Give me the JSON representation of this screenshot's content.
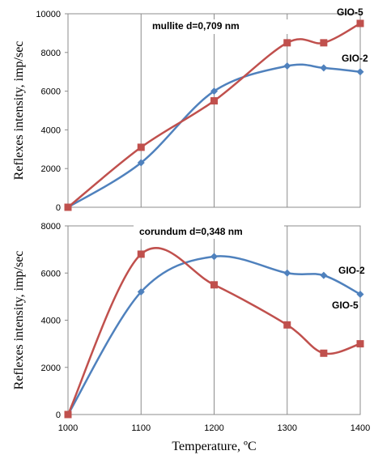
{
  "chart_data": [
    {
      "type": "line",
      "annotation": "mullite d=0,709 nm",
      "ylabel": "Reflexes intensity,  imp/sec",
      "xlim": [
        1000,
        1400
      ],
      "ylim": [
        0,
        10000
      ],
      "yticks": [
        "0",
        "2000",
        "4000",
        "6000",
        "8000",
        "10000"
      ],
      "grid": "vertical",
      "series": [
        {
          "name": "GIO-2",
          "color": "#4f81bd",
          "marker": "diamond",
          "x": [
            1000,
            1100,
            1200,
            1300,
            1350,
            1400
          ],
          "y": [
            0,
            2300,
            6000,
            7300,
            7200,
            7000
          ]
        },
        {
          "name": "GIO-5",
          "color": "#c0504d",
          "marker": "square",
          "x": [
            1000,
            1100,
            1200,
            1300,
            1350,
            1400
          ],
          "y": [
            0,
            3100,
            5500,
            8500,
            8500,
            9500
          ]
        }
      ]
    },
    {
      "type": "line",
      "annotation": "corundum d=0,348 nm",
      "ylabel": "Reflexes intensity,  imp/sec",
      "xlabel": "Temperature, ºC",
      "xlim": [
        1000,
        1400
      ],
      "ylim": [
        0,
        8000
      ],
      "xticks": [
        "1000",
        "1100",
        "1200",
        "1300",
        "1400"
      ],
      "yticks": [
        "0",
        "2000",
        "4000",
        "6000",
        "8000"
      ],
      "grid": "vertical",
      "series": [
        {
          "name": "GIO-2",
          "color": "#4f81bd",
          "marker": "diamond",
          "x": [
            1000,
            1100,
            1200,
            1300,
            1350,
            1400
          ],
          "y": [
            0,
            5200,
            6700,
            6000,
            5900,
            5100
          ]
        },
        {
          "name": "GIO-5",
          "color": "#c0504d",
          "marker": "square",
          "x": [
            1000,
            1100,
            1200,
            1300,
            1350,
            1400
          ],
          "y": [
            0,
            6800,
            5500,
            3800,
            2600,
            3000
          ]
        }
      ]
    }
  ]
}
